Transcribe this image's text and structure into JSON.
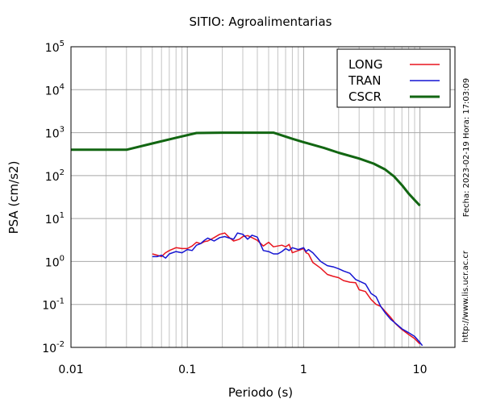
{
  "chart_data": {
    "type": "line",
    "title": "SITIO: Agroalimentarias",
    "xlabel": "Periodo (s)",
    "ylabel": "PSA (cm/s2)",
    "xscale": "log",
    "yscale": "log",
    "xlim": [
      0.01,
      20
    ],
    "ylim": [
      0.01,
      100000
    ],
    "grid": true,
    "legend_position": "top-right",
    "x_ticks": [
      {
        "value": 0.01,
        "label": "0.01"
      },
      {
        "value": 0.1,
        "label": "0.1"
      },
      {
        "value": 1,
        "label": "1"
      },
      {
        "value": 10,
        "label": "10"
      }
    ],
    "y_ticks": [
      {
        "value": 0.01,
        "base": "10",
        "exp": "-2"
      },
      {
        "value": 0.1,
        "base": "10",
        "exp": "-1"
      },
      {
        "value": 1,
        "base": "10",
        "exp": "0"
      },
      {
        "value": 10,
        "base": "10",
        "exp": "1"
      },
      {
        "value": 100,
        "base": "10",
        "exp": "2"
      },
      {
        "value": 1000,
        "base": "10",
        "exp": "3"
      },
      {
        "value": 10000,
        "base": "10",
        "exp": "4"
      },
      {
        "value": 100000,
        "base": "10",
        "exp": "5"
      }
    ],
    "series": [
      {
        "name": "LONG",
        "color": "#e8141e",
        "points": [
          [
            0.05,
            1.5
          ],
          [
            0.055,
            1.4
          ],
          [
            0.06,
            1.3
          ],
          [
            0.065,
            1.6
          ],
          [
            0.07,
            1.8
          ],
          [
            0.08,
            2.1
          ],
          [
            0.09,
            2.0
          ],
          [
            0.1,
            2.0
          ],
          [
            0.11,
            2.3
          ],
          [
            0.12,
            2.8
          ],
          [
            0.13,
            2.6
          ],
          [
            0.14,
            2.9
          ],
          [
            0.15,
            3.0
          ],
          [
            0.17,
            3.6
          ],
          [
            0.19,
            4.3
          ],
          [
            0.21,
            4.6
          ],
          [
            0.23,
            3.6
          ],
          [
            0.25,
            3.0
          ],
          [
            0.28,
            3.3
          ],
          [
            0.3,
            3.8
          ],
          [
            0.33,
            4.0
          ],
          [
            0.36,
            3.6
          ],
          [
            0.4,
            3.1
          ],
          [
            0.45,
            2.3
          ],
          [
            0.5,
            2.8
          ],
          [
            0.55,
            2.2
          ],
          [
            0.6,
            2.3
          ],
          [
            0.65,
            2.4
          ],
          [
            0.7,
            2.2
          ],
          [
            0.75,
            2.5
          ],
          [
            0.8,
            1.6
          ],
          [
            0.9,
            1.8
          ],
          [
            1.0,
            2.0
          ],
          [
            1.05,
            1.6
          ],
          [
            1.1,
            1.5
          ],
          [
            1.2,
            0.95
          ],
          [
            1.4,
            0.7
          ],
          [
            1.6,
            0.5
          ],
          [
            1.8,
            0.45
          ],
          [
            2.0,
            0.42
          ],
          [
            2.2,
            0.36
          ],
          [
            2.5,
            0.33
          ],
          [
            2.8,
            0.32
          ],
          [
            3.0,
            0.22
          ],
          [
            3.4,
            0.2
          ],
          [
            3.8,
            0.13
          ],
          [
            4.2,
            0.1
          ],
          [
            4.6,
            0.09
          ],
          [
            5.0,
            0.07
          ],
          [
            5.6,
            0.05
          ],
          [
            6.2,
            0.035
          ],
          [
            7.0,
            0.026
          ],
          [
            8.0,
            0.02
          ],
          [
            9.0,
            0.016
          ],
          [
            10.0,
            0.012
          ]
        ]
      },
      {
        "name": "TRAN",
        "color": "#1414d2",
        "points": [
          [
            0.05,
            1.3
          ],
          [
            0.055,
            1.3
          ],
          [
            0.06,
            1.4
          ],
          [
            0.065,
            1.2
          ],
          [
            0.07,
            1.5
          ],
          [
            0.08,
            1.7
          ],
          [
            0.09,
            1.6
          ],
          [
            0.1,
            1.9
          ],
          [
            0.11,
            1.8
          ],
          [
            0.12,
            2.4
          ],
          [
            0.13,
            2.6
          ],
          [
            0.14,
            3.1
          ],
          [
            0.15,
            3.5
          ],
          [
            0.17,
            3.0
          ],
          [
            0.19,
            3.6
          ],
          [
            0.21,
            3.8
          ],
          [
            0.23,
            3.5
          ],
          [
            0.25,
            3.3
          ],
          [
            0.27,
            4.6
          ],
          [
            0.3,
            4.3
          ],
          [
            0.33,
            3.3
          ],
          [
            0.36,
            4.1
          ],
          [
            0.4,
            3.7
          ],
          [
            0.45,
            1.8
          ],
          [
            0.5,
            1.7
          ],
          [
            0.55,
            1.5
          ],
          [
            0.6,
            1.5
          ],
          [
            0.65,
            1.7
          ],
          [
            0.7,
            2.0
          ],
          [
            0.75,
            1.8
          ],
          [
            0.8,
            2.1
          ],
          [
            0.9,
            1.9
          ],
          [
            1.0,
            2.1
          ],
          [
            1.05,
            1.7
          ],
          [
            1.1,
            1.9
          ],
          [
            1.2,
            1.6
          ],
          [
            1.4,
            1.0
          ],
          [
            1.6,
            0.8
          ],
          [
            1.8,
            0.75
          ],
          [
            2.0,
            0.68
          ],
          [
            2.2,
            0.6
          ],
          [
            2.5,
            0.53
          ],
          [
            2.8,
            0.38
          ],
          [
            3.0,
            0.35
          ],
          [
            3.4,
            0.3
          ],
          [
            3.8,
            0.18
          ],
          [
            4.2,
            0.15
          ],
          [
            4.6,
            0.09
          ],
          [
            5.0,
            0.065
          ],
          [
            5.6,
            0.045
          ],
          [
            6.2,
            0.036
          ],
          [
            7.0,
            0.027
          ],
          [
            8.0,
            0.022
          ],
          [
            9.0,
            0.018
          ],
          [
            10.0,
            0.013
          ],
          [
            10.5,
            0.011
          ]
        ]
      },
      {
        "name": "CSCR",
        "color": "#126612",
        "points": [
          [
            0.01,
            400
          ],
          [
            0.03,
            400
          ],
          [
            0.05,
            560
          ],
          [
            0.08,
            760
          ],
          [
            0.12,
            980
          ],
          [
            0.2,
            1000
          ],
          [
            0.35,
            1000
          ],
          [
            0.55,
            1000
          ],
          [
            0.8,
            720
          ],
          [
            1.0,
            600
          ],
          [
            1.5,
            440
          ],
          [
            2.0,
            340
          ],
          [
            3.0,
            250
          ],
          [
            4.0,
            190
          ],
          [
            5.0,
            140
          ],
          [
            6.0,
            95
          ],
          [
            7.0,
            60
          ],
          [
            8.0,
            38
          ],
          [
            9.0,
            27
          ],
          [
            10.0,
            20
          ]
        ]
      }
    ]
  },
  "side_labels": {
    "fecha": "Fecha: 2023-02-19 Hora: 17:03:09",
    "url": "http://www.lis.ucr.ac.cr"
  }
}
